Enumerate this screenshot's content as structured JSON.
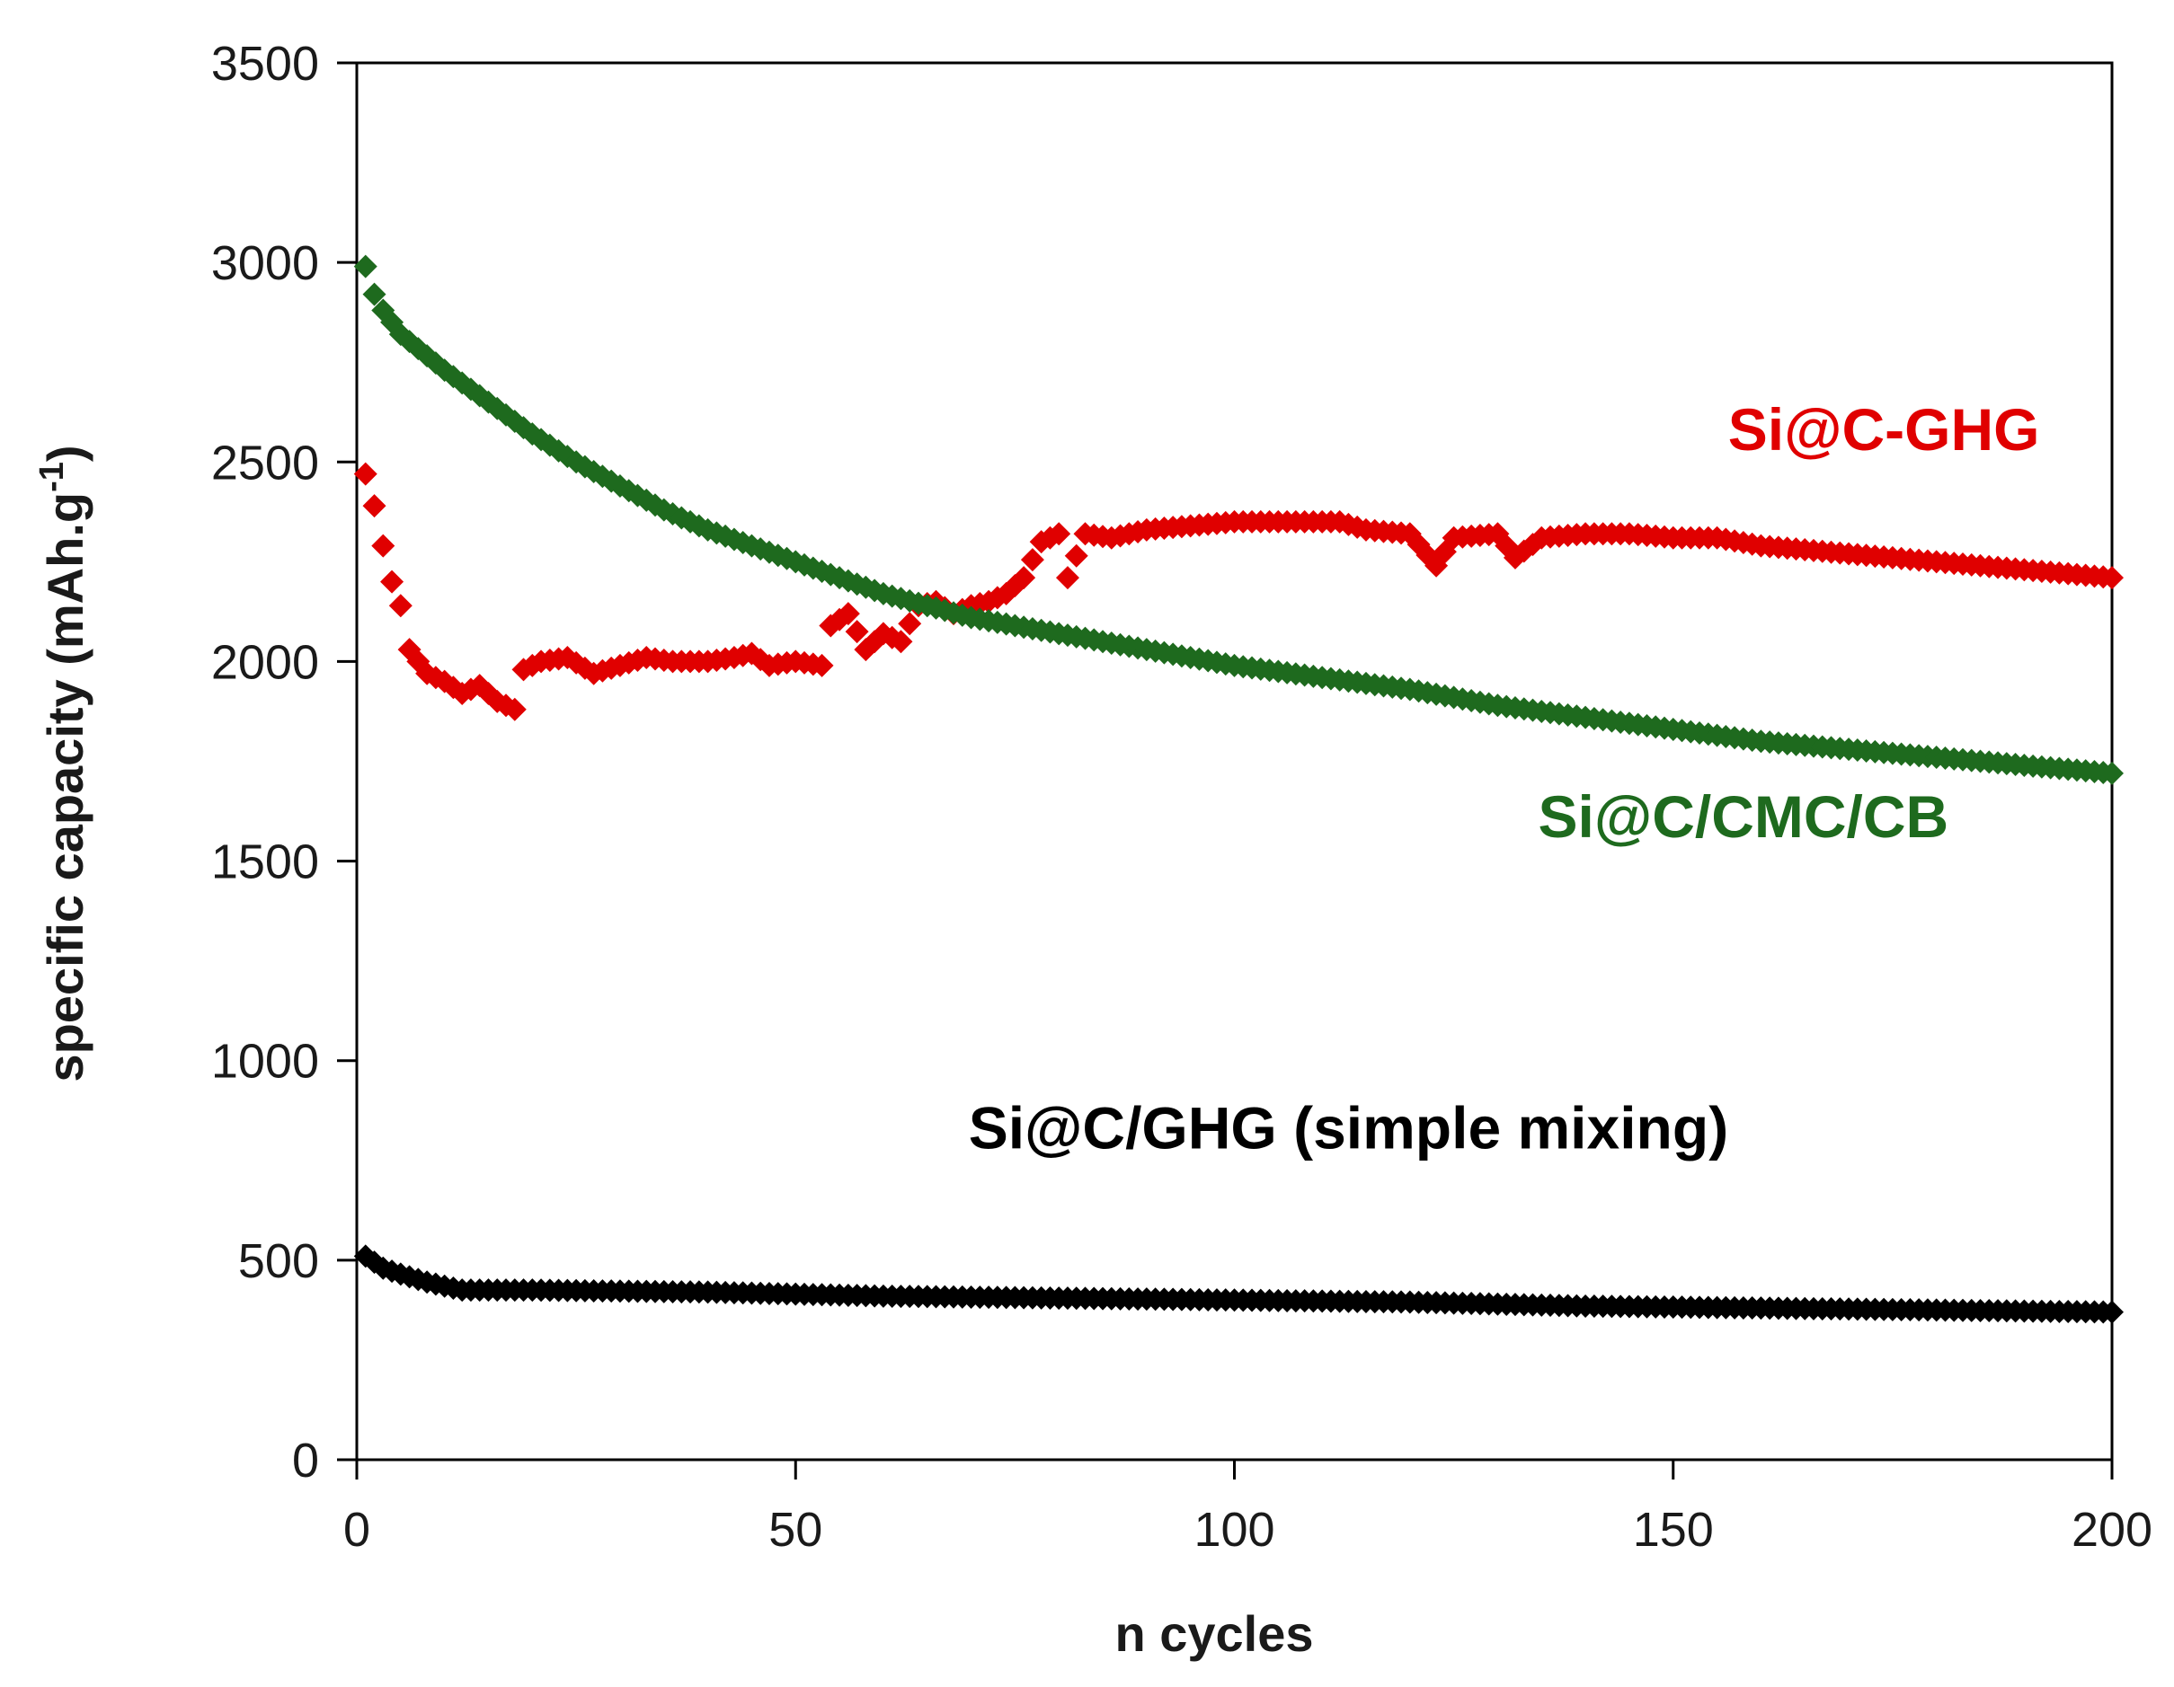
{
  "chart_data": {
    "type": "scatter",
    "title": "",
    "xlabel": "n cycles",
    "ylabel_main": "specific capacity (mAh.g",
    "ylabel_sup": "-1",
    "ylabel_close": ")",
    "xlim": [
      0,
      200
    ],
    "ylim": [
      0,
      3500
    ],
    "xticks": [
      "0",
      "50",
      "100",
      "150",
      "200"
    ],
    "yticks": [
      "0",
      "500",
      "1000",
      "1500",
      "2000",
      "2500",
      "3000",
      "3500"
    ],
    "grid": false,
    "legend": "none",
    "series": [
      {
        "name": "Si@C-GHG",
        "color": "#e00000",
        "label_pos": [
          174,
          2530
        ],
        "key": [
          [
            1,
            2470
          ],
          [
            2,
            2390
          ],
          [
            3,
            2290
          ],
          [
            4,
            2200
          ],
          [
            5,
            2140
          ],
          [
            6,
            2030
          ],
          [
            8,
            1970
          ],
          [
            10,
            1950
          ],
          [
            12,
            1920
          ],
          [
            14,
            1940
          ],
          [
            16,
            1900
          ],
          [
            18,
            1880
          ],
          [
            19,
            1980
          ],
          [
            21,
            2000
          ],
          [
            24,
            2010
          ],
          [
            27,
            1970
          ],
          [
            30,
            1990
          ],
          [
            33,
            2010
          ],
          [
            36,
            2000
          ],
          [
            40,
            2000
          ],
          [
            43,
            2010
          ],
          [
            45,
            2020
          ],
          [
            47,
            1990
          ],
          [
            50,
            2000
          ],
          [
            53,
            1990
          ],
          [
            54,
            2090
          ],
          [
            56,
            2120
          ],
          [
            58,
            2030
          ],
          [
            60,
            2070
          ],
          [
            62,
            2050
          ],
          [
            64,
            2140
          ],
          [
            66,
            2150
          ],
          [
            68,
            2120
          ],
          [
            70,
            2140
          ],
          [
            72,
            2150
          ],
          [
            74,
            2170
          ],
          [
            76,
            2210
          ],
          [
            78,
            2300
          ],
          [
            80,
            2320
          ],
          [
            81,
            2210
          ],
          [
            83,
            2320
          ],
          [
            86,
            2310
          ],
          [
            90,
            2330
          ],
          [
            95,
            2340
          ],
          [
            100,
            2350
          ],
          [
            105,
            2350
          ],
          [
            110,
            2350
          ],
          [
            112,
            2350
          ],
          [
            115,
            2330
          ],
          [
            120,
            2320
          ],
          [
            123,
            2240
          ],
          [
            125,
            2310
          ],
          [
            130,
            2320
          ],
          [
            132,
            2260
          ],
          [
            135,
            2310
          ],
          [
            140,
            2320
          ],
          [
            145,
            2320
          ],
          [
            150,
            2310
          ],
          [
            155,
            2310
          ],
          [
            160,
            2290
          ],
          [
            165,
            2280
          ],
          [
            170,
            2270
          ],
          [
            175,
            2260
          ],
          [
            180,
            2250
          ],
          [
            185,
            2240
          ],
          [
            190,
            2230
          ],
          [
            195,
            2220
          ],
          [
            200,
            2210
          ]
        ]
      },
      {
        "name": "Si@C/CMC/CB",
        "color": "#1e6a1e",
        "label_pos": [
          158,
          1560
        ],
        "key": [
          [
            1,
            2990
          ],
          [
            2,
            2920
          ],
          [
            3,
            2880
          ],
          [
            4,
            2850
          ],
          [
            5,
            2820
          ],
          [
            10,
            2730
          ],
          [
            15,
            2650
          ],
          [
            20,
            2570
          ],
          [
            25,
            2500
          ],
          [
            30,
            2440
          ],
          [
            35,
            2380
          ],
          [
            40,
            2330
          ],
          [
            45,
            2290
          ],
          [
            50,
            2250
          ],
          [
            55,
            2210
          ],
          [
            60,
            2170
          ],
          [
            65,
            2140
          ],
          [
            70,
            2110
          ],
          [
            75,
            2090
          ],
          [
            80,
            2070
          ],
          [
            90,
            2030
          ],
          [
            100,
            1990
          ],
          [
            110,
            1960
          ],
          [
            120,
            1930
          ],
          [
            130,
            1890
          ],
          [
            140,
            1860
          ],
          [
            150,
            1830
          ],
          [
            160,
            1800
          ],
          [
            170,
            1780
          ],
          [
            180,
            1760
          ],
          [
            190,
            1740
          ],
          [
            200,
            1720
          ]
        ]
      },
      {
        "name": "Si@C/GHG (simple mixing)",
        "color": "#000000",
        "label_pos": [
          113,
          780
        ],
        "key": [
          [
            1,
            510
          ],
          [
            2,
            495
          ],
          [
            3,
            480
          ],
          [
            5,
            465
          ],
          [
            8,
            445
          ],
          [
            10,
            435
          ],
          [
            12,
            425
          ],
          [
            20,
            425
          ],
          [
            40,
            420
          ],
          [
            60,
            410
          ],
          [
            80,
            405
          ],
          [
            100,
            400
          ],
          [
            120,
            395
          ],
          [
            140,
            385
          ],
          [
            160,
            380
          ],
          [
            180,
            375
          ],
          [
            200,
            370
          ]
        ]
      }
    ]
  }
}
